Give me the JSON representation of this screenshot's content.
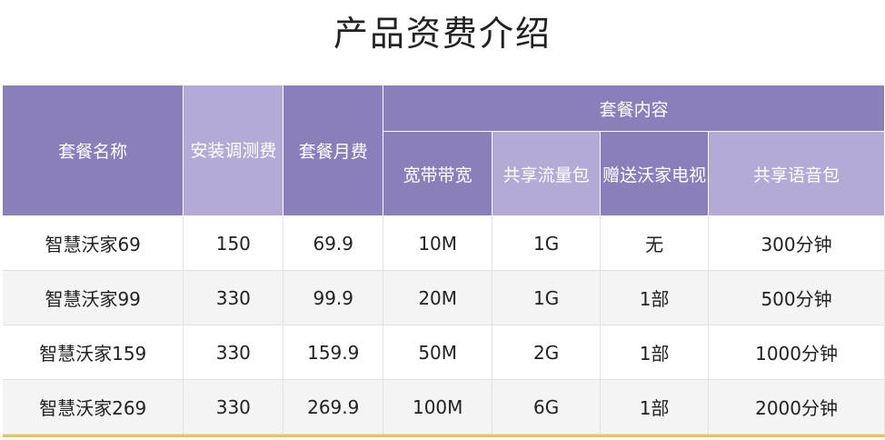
{
  "title": "产品资费介绍",
  "table": {
    "headers": {
      "package_name": "套餐名称",
      "install_fee": "安装调测费",
      "monthly_fee": "套餐月费",
      "contents_group": "套餐内容",
      "broadband": "宽带带宽",
      "shared_data": "共享流量包",
      "gift_tv": "赠送沃家电视",
      "shared_voice": "共享语音包"
    },
    "rows": [
      {
        "name": "智慧沃家69",
        "install": "150",
        "monthly": "69.9",
        "broadband": "10M",
        "data": "1G",
        "tv": "无",
        "voice": "300分钟"
      },
      {
        "name": "智慧沃家99",
        "install": "330",
        "monthly": "99.9",
        "broadband": "20M",
        "data": "1G",
        "tv": "1部",
        "voice": "500分钟"
      },
      {
        "name": "智慧沃家159",
        "install": "330",
        "monthly": "159.9",
        "broadband": "50M",
        "data": "2G",
        "tv": "1部",
        "voice": "1000分钟"
      },
      {
        "name": "智慧沃家269",
        "install": "330",
        "monthly": "269.9",
        "broadband": "100M",
        "data": "6G",
        "tv": "1部",
        "voice": "2000分钟"
      }
    ]
  },
  "colors": {
    "header_purple": "#8b7fba",
    "header_light_purple": "#b5a9d6",
    "row_alt": "#f4f4f4",
    "accent_line": "#e9c25a"
  }
}
